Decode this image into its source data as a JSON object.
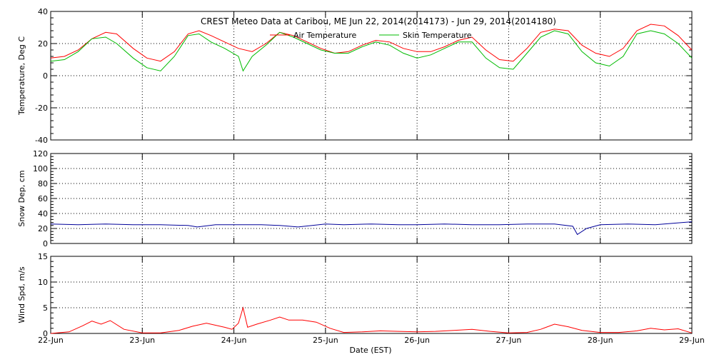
{
  "title": "CREST Meteo Data at Caribou, ME   Jun 22, 2014(2014173) - Jun 29, 2014(2014180)",
  "xlabel": "Date (EST)",
  "x_ticks": [
    "22-Jun",
    "23-Jun",
    "24-Jun",
    "25-Jun",
    "26-Jun",
    "27-Jun",
    "28-Jun",
    "29-Jun"
  ],
  "colors": {
    "air": "#ff0000",
    "skin": "#00bb00",
    "snow": "#000099",
    "wind": "#ff0000"
  },
  "chart_data": [
    {
      "type": "line",
      "ylabel": "Temperature, Deg C",
      "ylim": [
        -40,
        40
      ],
      "yticks": [
        -40,
        -20,
        0,
        20,
        40
      ],
      "xlim": [
        0,
        7
      ],
      "grid": true,
      "legend_placement": "top-center",
      "series": [
        {
          "name": "Air Temperature",
          "x": [
            0,
            0.15,
            0.3,
            0.45,
            0.6,
            0.72,
            0.9,
            1.05,
            1.2,
            1.35,
            1.5,
            1.62,
            1.75,
            1.9,
            2.05,
            2.2,
            2.35,
            2.5,
            2.65,
            2.8,
            2.95,
            3.1,
            3.25,
            3.4,
            3.55,
            3.7,
            3.85,
            4.0,
            4.15,
            4.3,
            4.45,
            4.6,
            4.75,
            4.9,
            5.05,
            5.2,
            5.35,
            5.5,
            5.65,
            5.8,
            5.95,
            6.1,
            6.25,
            6.4,
            6.55,
            6.7,
            6.85,
            7.0
          ],
          "y": [
            11,
            12,
            16,
            23,
            27,
            26,
            17,
            11,
            9,
            15,
            26,
            28,
            25,
            21,
            17,
            15,
            20,
            27,
            25,
            21,
            17,
            14,
            15,
            19,
            22,
            21,
            17,
            15,
            15,
            18,
            22,
            24,
            16,
            10,
            9,
            17,
            27,
            29,
            28,
            19,
            14,
            12,
            17,
            28,
            32,
            31,
            25,
            16
          ]
        },
        {
          "name": "Skin Temperature",
          "x": [
            0,
            0.15,
            0.3,
            0.45,
            0.6,
            0.72,
            0.9,
            1.05,
            1.2,
            1.35,
            1.5,
            1.62,
            1.75,
            1.9,
            2.05,
            2.1,
            2.2,
            2.35,
            2.5,
            2.65,
            2.8,
            2.95,
            3.1,
            3.25,
            3.4,
            3.55,
            3.7,
            3.85,
            4.0,
            4.15,
            4.3,
            4.45,
            4.6,
            4.75,
            4.9,
            5.05,
            5.2,
            5.35,
            5.5,
            5.65,
            5.8,
            5.95,
            6.1,
            6.25,
            6.4,
            6.55,
            6.7,
            6.85,
            7.0
          ],
          "y": [
            9,
            10,
            15,
            23,
            24,
            20,
            11,
            5,
            3,
            12,
            25,
            26,
            21,
            17,
            12,
            3,
            12,
            19,
            27,
            24,
            20,
            16,
            14,
            14,
            18,
            21,
            19,
            14,
            11,
            13,
            17,
            21,
            21,
            11,
            5,
            4,
            14,
            24,
            28,
            26,
            15,
            8,
            6,
            12,
            26,
            28,
            26,
            20,
            11
          ]
        }
      ]
    },
    {
      "type": "line",
      "ylabel": "Snow Dep, cm",
      "ylim": [
        0,
        120
      ],
      "yticks": [
        0,
        20,
        40,
        60,
        80,
        100,
        120
      ],
      "xlim": [
        0,
        7
      ],
      "grid": true,
      "series": [
        {
          "x": [
            0,
            0.3,
            0.6,
            0.9,
            1.2,
            1.5,
            1.6,
            1.8,
            2.0,
            2.3,
            2.5,
            2.7,
            3.0,
            3.2,
            3.5,
            3.8,
            4.0,
            4.3,
            4.6,
            4.9,
            5.2,
            5.5,
            5.7,
            5.75,
            5.85,
            6.0,
            6.3,
            6.6,
            6.9,
            7.0
          ],
          "y": [
            26,
            25,
            26,
            25,
            25,
            24,
            22,
            25,
            25,
            25,
            24,
            22,
            26,
            25,
            26,
            25,
            25,
            26,
            25,
            25,
            26,
            26,
            23,
            12,
            20,
            25,
            26,
            25,
            28,
            29
          ]
        }
      ]
    },
    {
      "type": "line",
      "ylabel": "Wind Spd, m/s",
      "ylim": [
        0,
        15
      ],
      "yticks": [
        0,
        5,
        10,
        15
      ],
      "xlim": [
        0,
        7
      ],
      "grid": true,
      "series": [
        {
          "x": [
            0,
            0.2,
            0.35,
            0.45,
            0.55,
            0.65,
            0.8,
            1.0,
            1.2,
            1.4,
            1.55,
            1.7,
            1.9,
            1.98,
            2.05,
            2.1,
            2.15,
            2.25,
            2.4,
            2.5,
            2.6,
            2.75,
            2.9,
            3.05,
            3.2,
            3.4,
            3.6,
            3.8,
            4.0,
            4.2,
            4.4,
            4.6,
            4.8,
            5.0,
            5.2,
            5.35,
            5.5,
            5.65,
            5.8,
            6.0,
            6.2,
            6.4,
            6.55,
            6.7,
            6.85,
            7.0
          ],
          "y": [
            0,
            0.3,
            1.5,
            2.4,
            1.8,
            2.5,
            0.8,
            0.1,
            0.1,
            0.6,
            1.4,
            2.0,
            1.2,
            0.8,
            2.0,
            5.0,
            1.2,
            1.8,
            2.6,
            3.2,
            2.6,
            2.6,
            2.2,
            1.0,
            0.2,
            0.3,
            0.5,
            0.4,
            0.3,
            0.4,
            0.6,
            0.8,
            0.4,
            0.1,
            0.2,
            0.8,
            1.8,
            1.3,
            0.6,
            0.2,
            0.2,
            0.5,
            1.0,
            0.7,
            0.9,
            0.1
          ]
        }
      ]
    }
  ]
}
